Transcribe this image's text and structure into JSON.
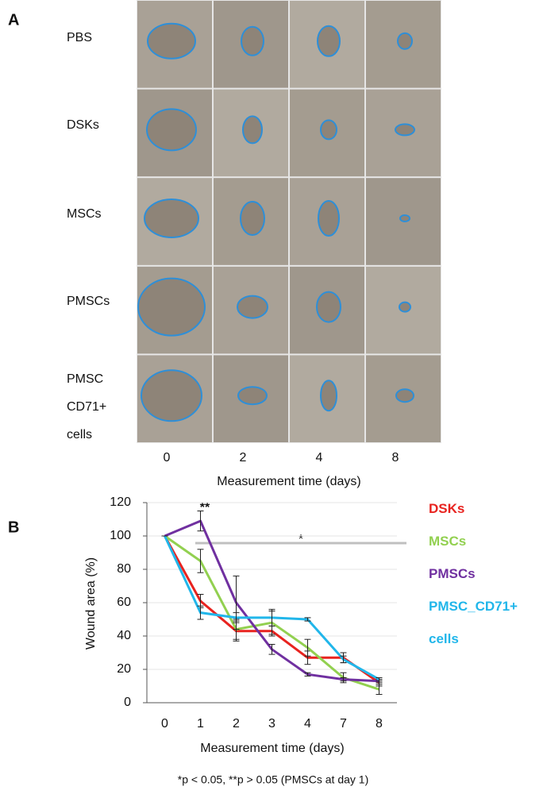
{
  "panel_a": {
    "label": "A",
    "rows": [
      "PBS",
      "DSKs",
      "MSCs",
      "PMSCs",
      "PMSC CD71+ cells"
    ],
    "columns": [
      "0",
      "2",
      "4",
      "8"
    ],
    "x_label": "Measurement time (days)"
  },
  "chart_data": {
    "type": "line",
    "panel_label": "B",
    "categories": [
      "0",
      "1",
      "2",
      "3",
      "4",
      "7",
      "8"
    ],
    "x_label": "Measurement time (days)",
    "y_label": "Wound area  (%)",
    "ylim": [
      0,
      120
    ],
    "yticks": [
      0,
      20,
      40,
      60,
      80,
      100,
      120
    ],
    "grid": true,
    "series": [
      {
        "name": "DSKs",
        "color": "#e8231f",
        "values": [
          100,
          61,
          43,
          43,
          27,
          27,
          12
        ],
        "errors": [
          0,
          4,
          6,
          3,
          4,
          3,
          2
        ]
      },
      {
        "name": "MSCs",
        "color": "#92d050",
        "values": [
          100,
          85,
          44,
          48,
          33,
          15,
          8
        ],
        "errors": [
          0,
          7,
          6,
          7,
          5,
          3,
          3
        ]
      },
      {
        "name": "PMSCs",
        "color": "#7030a0",
        "values": [
          100,
          109,
          60,
          32,
          17,
          14,
          13
        ],
        "errors": [
          0,
          6,
          16,
          3,
          1,
          1,
          1
        ]
      },
      {
        "name": "PMSC_CD71+ cells",
        "color": "#21b6ea",
        "values": [
          100,
          54,
          51,
          51,
          50,
          26,
          14
        ],
        "errors": [
          0,
          4,
          3,
          5,
          1,
          2,
          1
        ]
      }
    ],
    "annotations": [
      "**",
      "*"
    ],
    "footnote": "*p < 0.05, **p > 0.05 (PMSCs at day 1)"
  }
}
